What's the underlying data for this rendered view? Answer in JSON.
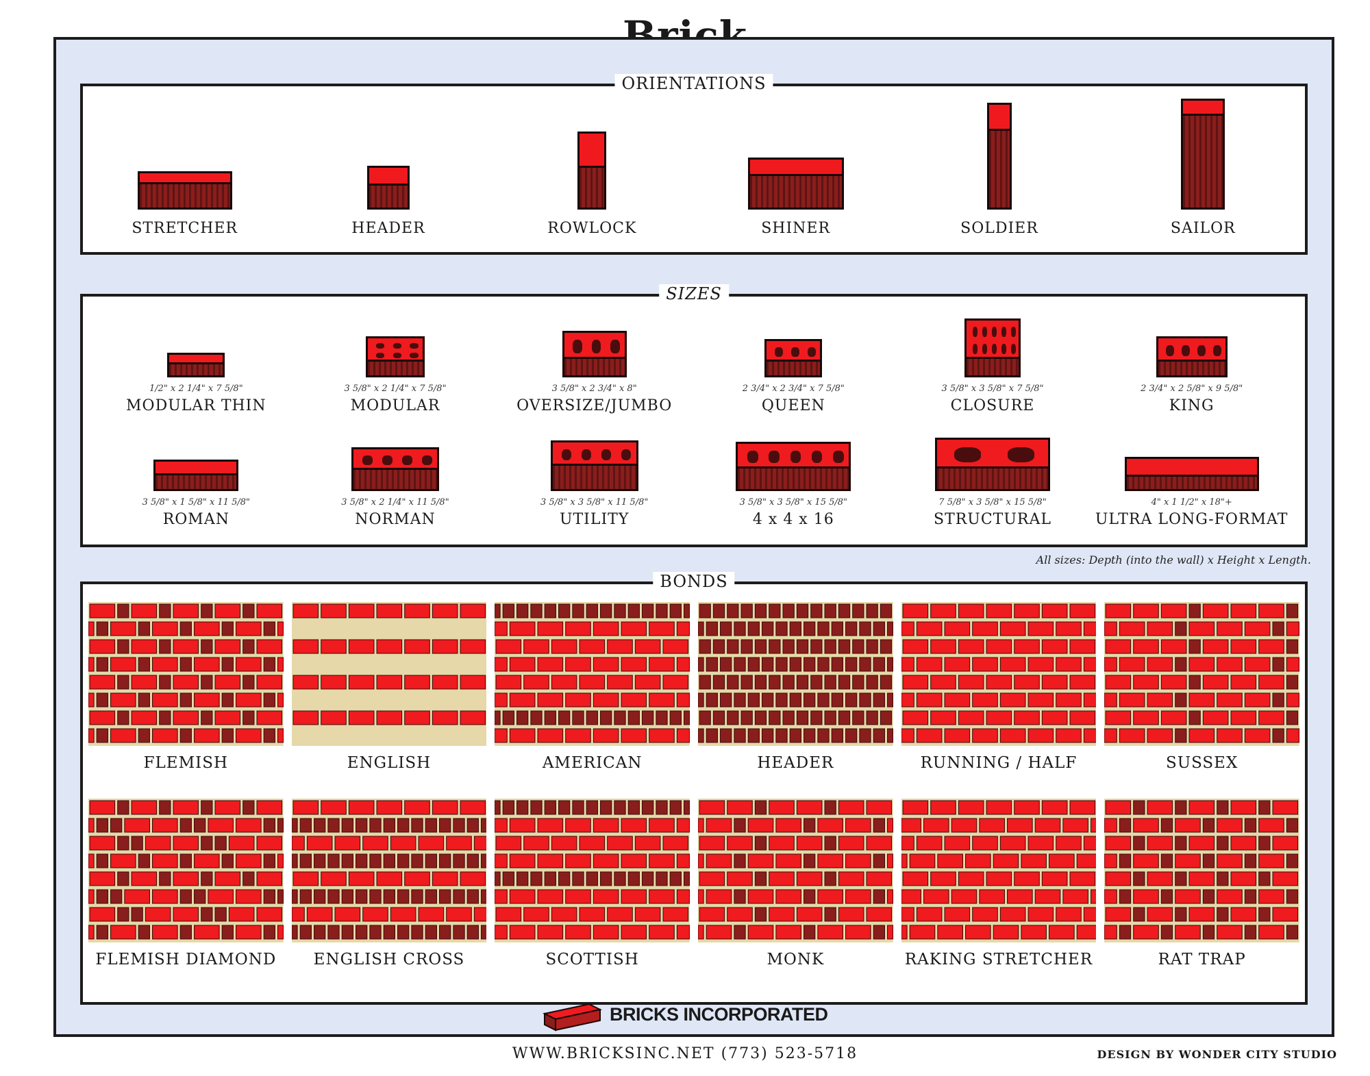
{
  "title": "Brick",
  "sections": {
    "orientations": {
      "label": "ORIENTATIONS",
      "items": [
        "STRETCHER",
        "HEADER",
        "ROWLOCK",
        "SHINER",
        "SOLDIER",
        "SAILOR"
      ]
    },
    "sizes": {
      "label": "SIZES",
      "items": [
        {
          "name": "MODULAR THIN",
          "dims": "1/2\" x 2 1/4\" x 7 5/8\""
        },
        {
          "name": "MODULAR",
          "dims": "3 5/8\" x 2 1/4\" x 7 5/8\""
        },
        {
          "name": "OVERSIZE/JUMBO",
          "dims": "3 5/8\" x 2 3/4\" x 8\""
        },
        {
          "name": "QUEEN",
          "dims": "2 3/4\" x 2 3/4\" x 7 5/8\""
        },
        {
          "name": "CLOSURE",
          "dims": "3 5/8\" x 3 5/8\" x 7 5/8\""
        },
        {
          "name": "KING",
          "dims": "2 3/4\" x 2 5/8\" x 9 5/8\""
        },
        {
          "name": "ROMAN",
          "dims": "3 5/8\" x 1 5/8\" x 11 5/8\""
        },
        {
          "name": "NORMAN",
          "dims": "3 5/8\" x 2 1/4\" x 11 5/8\""
        },
        {
          "name": "UTILITY",
          "dims": "3 5/8\" x 3 5/8\" x 11 5/8\""
        },
        {
          "name": "4 x 4 x 16",
          "dims": "3 5/8\" x 3 5/8\" x 15 5/8\""
        },
        {
          "name": "STRUCTURAL",
          "dims": "7 5/8\" x 3 5/8\" x 15 5/8\""
        },
        {
          "name": "ULTRA LONG-FORMAT",
          "dims": "4\" x 1 1/2\" x 18\"+"
        }
      ],
      "note": "All sizes: Depth (into the wall) x Height x Length."
    },
    "bonds": {
      "label": "BONDS",
      "items": [
        "FLEMISH",
        "ENGLISH",
        "AMERICAN",
        "HEADER",
        "RUNNING / HALF",
        "SUSSEX",
        "FLEMISH DIAMOND",
        "ENGLISH CROSS",
        "SCOTTISH",
        "MONK",
        "RAKING STRETCHER",
        "RAT TRAP"
      ]
    }
  },
  "footer": {
    "company": "BRICKS INCORPORATED",
    "website": "WWW.BRICKSINC.NET  (773) 523-5718",
    "credit": "DESIGN BY WONDER CITY STUDIO"
  },
  "colors": {
    "brick_red": "#ef1b1f",
    "brick_dark": "#8a1e1c",
    "mortar": "#e6d8a8",
    "frame_blue": "#dfe6f6"
  }
}
